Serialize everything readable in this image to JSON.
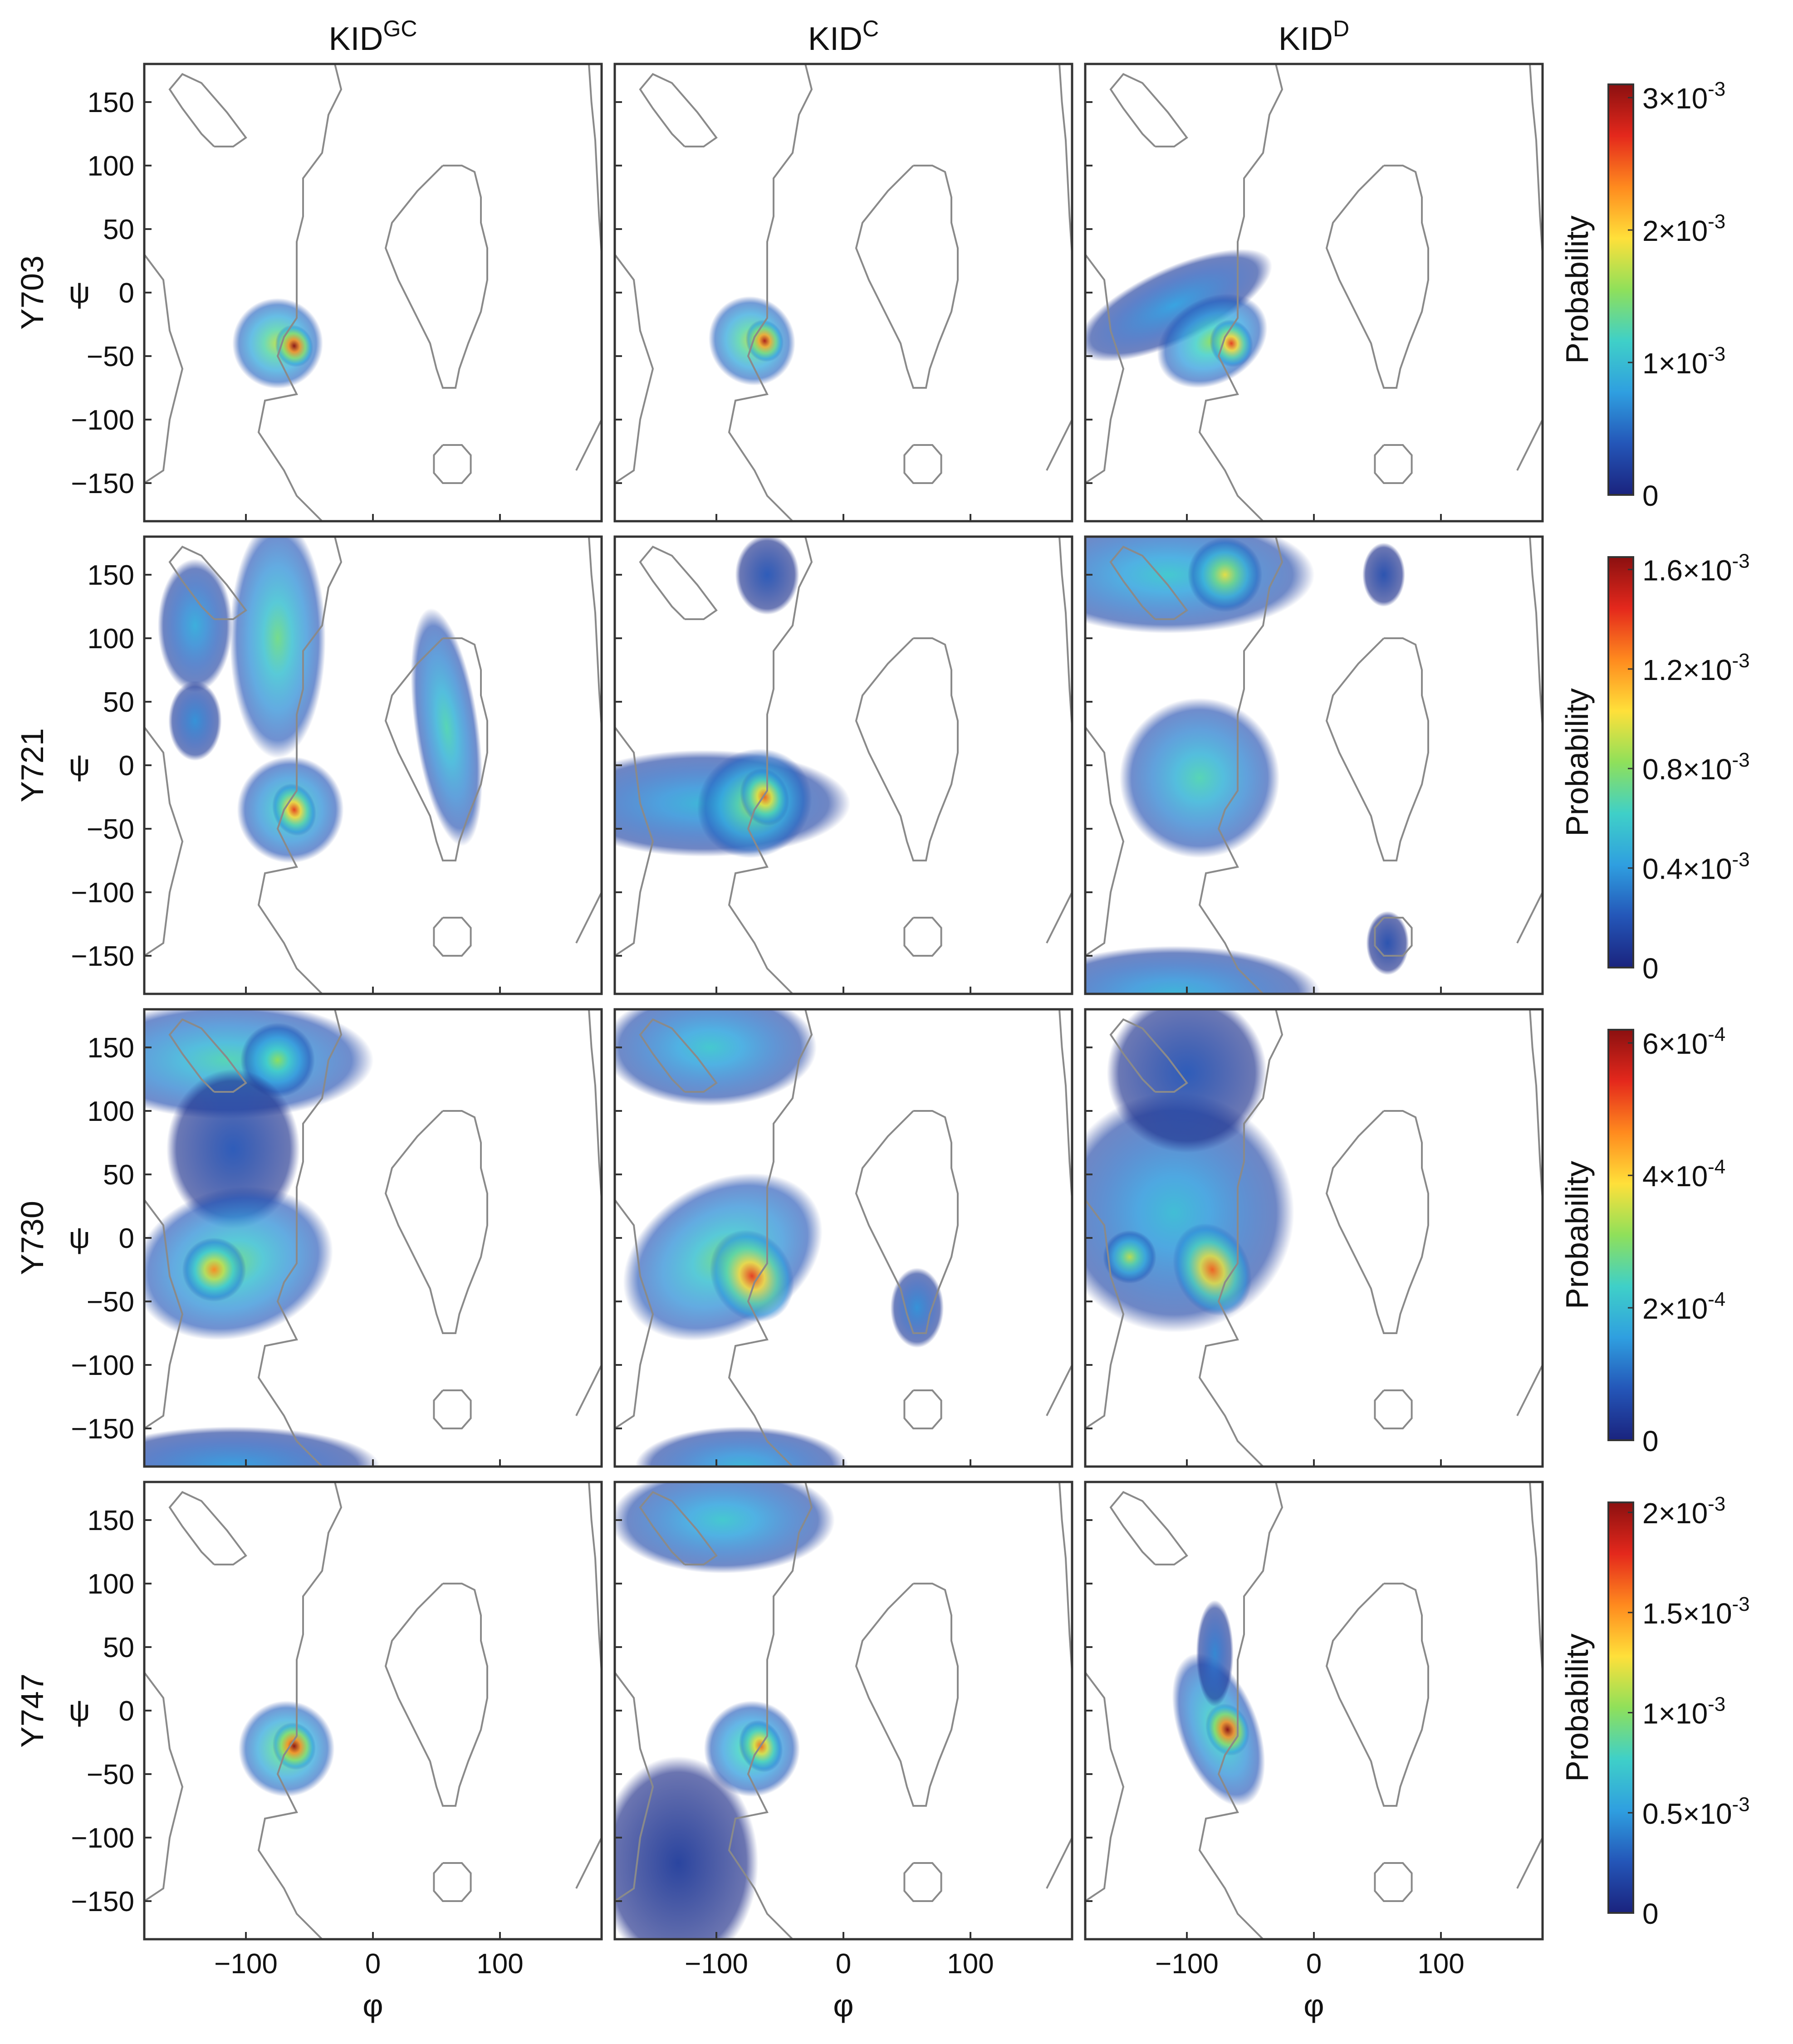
{
  "columns": [
    {
      "base": "KID",
      "sup": "GC"
    },
    {
      "base": "KID",
      "sup": "C"
    },
    {
      "base": "KID",
      "sup": "D"
    }
  ],
  "rows": [
    "Y703",
    "Y721",
    "Y730",
    "Y747"
  ],
  "axis": {
    "x_label": "φ",
    "y_label": "ψ",
    "x_ticks": [
      "−100",
      "0",
      "100"
    ],
    "y_ticks": [
      "150",
      "100",
      "50",
      "0",
      "−50",
      "−100",
      "−150"
    ],
    "colorbar_label": "Probability"
  },
  "colors": {
    "scale": [
      "#1a237e",
      "#2456b8",
      "#2f9fe0",
      "#3fd0c8",
      "#8fe05a",
      "#ffe03a",
      "#ff8a1e",
      "#e4281c",
      "#8b1010"
    ],
    "contour": "#8a8a8a",
    "frame": "#333333"
  },
  "chart_data": {
    "type": "heatmap",
    "grid": false,
    "xlim": [
      -180,
      180
    ],
    "ylim": [
      -180,
      180
    ],
    "x_tick_values": [
      -100,
      0,
      100
    ],
    "y_tick_values": [
      150,
      100,
      50,
      0,
      -50,
      -100,
      -150
    ],
    "colorbars": [
      {
        "row": "Y703",
        "ticks": [
          {
            "v": 0,
            "mant": "0",
            "exp": ""
          },
          {
            "v": 0.001,
            "mant": "1×10",
            "exp": "-3"
          },
          {
            "v": 0.002,
            "mant": "2×10",
            "exp": "-3"
          },
          {
            "v": 0.003,
            "mant": "3×10",
            "exp": "-3"
          }
        ],
        "max": 0.0031
      },
      {
        "row": "Y721",
        "ticks": [
          {
            "v": 0,
            "mant": "0",
            "exp": ""
          },
          {
            "v": 0.0004,
            "mant": "0.4×10",
            "exp": "-3"
          },
          {
            "v": 0.0008,
            "mant": "0.8×10",
            "exp": "-3"
          },
          {
            "v": 0.0012,
            "mant": "1.2×10",
            "exp": "-3"
          },
          {
            "v": 0.0016,
            "mant": "1.6×10",
            "exp": "-3"
          }
        ],
        "max": 0.00165
      },
      {
        "row": "Y730",
        "ticks": [
          {
            "v": 0,
            "mant": "0",
            "exp": ""
          },
          {
            "v": 0.0002,
            "mant": "2×10",
            "exp": "-4"
          },
          {
            "v": 0.0004,
            "mant": "4×10",
            "exp": "-4"
          },
          {
            "v": 0.0006,
            "mant": "6×10",
            "exp": "-4"
          }
        ],
        "max": 0.00062
      },
      {
        "row": "Y747",
        "ticks": [
          {
            "v": 0,
            "mant": "0",
            "exp": ""
          },
          {
            "v": 0.0005,
            "mant": "0.5×10",
            "exp": "-3"
          },
          {
            "v": 0.001,
            "mant": "1×10",
            "exp": "-3"
          },
          {
            "v": 0.0015,
            "mant": "1.5×10",
            "exp": "-3"
          },
          {
            "v": 0.002,
            "mant": "2×10",
            "exp": "-3"
          }
        ],
        "max": 0.00205
      }
    ],
    "region_outlines": [
      [
        [
          -180,
          -150
        ],
        [
          -165,
          -140
        ],
        [
          -160,
          -100
        ],
        [
          -150,
          -60
        ],
        [
          -160,
          -30
        ],
        [
          -165,
          10
        ],
        [
          -180,
          30
        ]
      ],
      [
        [
          -125,
          115
        ],
        [
          -135,
          125
        ],
        [
          -150,
          145
        ],
        [
          -160,
          160
        ],
        [
          -150,
          172
        ],
        [
          -135,
          165
        ],
        [
          -115,
          142
        ],
        [
          -100,
          122
        ],
        [
          -110,
          115
        ],
        [
          -125,
          115
        ]
      ],
      [
        [
          -30,
          180
        ],
        [
          -25,
          160
        ],
        [
          -35,
          140
        ],
        [
          -40,
          110
        ],
        [
          -55,
          90
        ],
        [
          -55,
          60
        ],
        [
          -60,
          40
        ],
        [
          -60,
          10
        ],
        [
          -60,
          -20
        ],
        [
          -70,
          -35
        ],
        [
          -75,
          -50
        ],
        [
          -60,
          -80
        ],
        [
          -85,
          -85
        ],
        [
          -90,
          -110
        ],
        [
          -70,
          -140
        ],
        [
          -60,
          -160
        ],
        [
          -40,
          -180
        ]
      ],
      [
        [
          170,
          180
        ],
        [
          172,
          150
        ],
        [
          175,
          120
        ],
        [
          178,
          60
        ],
        [
          180,
          30
        ]
      ],
      [
        [
          160,
          -140
        ],
        [
          170,
          -120
        ],
        [
          180,
          -100
        ]
      ],
      [
        [
          55,
          100
        ],
        [
          35,
          80
        ],
        [
          15,
          55
        ],
        [
          10,
          35
        ],
        [
          20,
          10
        ],
        [
          35,
          -20
        ],
        [
          45,
          -40
        ],
        [
          50,
          -60
        ],
        [
          55,
          -75
        ],
        [
          65,
          -75
        ],
        [
          68,
          -60
        ],
        [
          75,
          -40
        ],
        [
          85,
          -15
        ],
        [
          90,
          10
        ],
        [
          90,
          35
        ],
        [
          85,
          55
        ],
        [
          85,
          75
        ],
        [
          80,
          95
        ],
        [
          70,
          100
        ],
        [
          55,
          100
        ]
      ],
      [
        [
          55,
          -120
        ],
        [
          48,
          -128
        ],
        [
          48,
          -142
        ],
        [
          55,
          -150
        ],
        [
          70,
          -150
        ],
        [
          77,
          -142
        ],
        [
          77,
          -128
        ],
        [
          70,
          -120
        ],
        [
          55,
          -120
        ]
      ]
    ],
    "panels": [
      {
        "row": "Y703",
        "col": "KID^GC",
        "blobs": [
          {
            "x": -75,
            "y": -40,
            "sx": 17,
            "sy": 17,
            "rot": -30,
            "level": 0.55
          },
          {
            "x": -62,
            "y": -42,
            "sx": 7,
            "sy": 8,
            "rot": -20,
            "level": 1.0
          }
        ]
      },
      {
        "row": "Y703",
        "col": "KID^C",
        "blobs": [
          {
            "x": -72,
            "y": -38,
            "sx": 16,
            "sy": 17,
            "rot": -30,
            "level": 0.55
          },
          {
            "x": -62,
            "y": -38,
            "sx": 7,
            "sy": 8,
            "rot": -20,
            "level": 0.95
          }
        ]
      },
      {
        "row": "Y703",
        "col": "KID^D",
        "blobs": [
          {
            "x": -110,
            "y": -10,
            "sx": 40,
            "sy": 14,
            "rot": -25,
            "level": 0.25
          },
          {
            "x": -80,
            "y": -38,
            "sx": 22,
            "sy": 16,
            "rot": -30,
            "level": 0.5
          },
          {
            "x": -65,
            "y": -40,
            "sx": 8,
            "sy": 9,
            "rot": -20,
            "level": 0.85
          }
        ]
      },
      {
        "row": "Y721",
        "col": "KID^GC",
        "blobs": [
          {
            "x": -140,
            "y": 110,
            "sx": 14,
            "sy": 25,
            "rot": 0,
            "level": 0.28
          },
          {
            "x": -140,
            "y": 35,
            "sx": 10,
            "sy": 15,
            "rot": 0,
            "level": 0.22
          },
          {
            "x": -75,
            "y": 100,
            "sx": 18,
            "sy": 45,
            "rot": 0,
            "level": 0.45
          },
          {
            "x": -65,
            "y": -35,
            "sx": 20,
            "sy": 20,
            "rot": -30,
            "level": 0.45
          },
          {
            "x": -62,
            "y": -35,
            "sx": 8,
            "sy": 10,
            "rot": -20,
            "level": 0.85
          },
          {
            "x": 58,
            "y": 30,
            "sx": 12,
            "sy": 45,
            "rot": -8,
            "level": 0.4
          }
        ]
      },
      {
        "row": "Y721",
        "col": "KID^C",
        "blobs": [
          {
            "x": -110,
            "y": -30,
            "sx": 55,
            "sy": 20,
            "rot": 0,
            "level": 0.3
          },
          {
            "x": -70,
            "y": -30,
            "sx": 22,
            "sy": 20,
            "rot": -30,
            "level": 0.55
          },
          {
            "x": -62,
            "y": -25,
            "sx": 9,
            "sy": 11,
            "rot": -20,
            "level": 0.8
          },
          {
            "x": -60,
            "y": 150,
            "sx": 12,
            "sy": 15,
            "rot": 0,
            "level": 0.12
          }
        ]
      },
      {
        "row": "Y721",
        "col": "KID^D",
        "blobs": [
          {
            "x": -115,
            "y": 150,
            "sx": 55,
            "sy": 22,
            "rot": 0,
            "level": 0.35
          },
          {
            "x": -70,
            "y": 150,
            "sx": 14,
            "sy": 14,
            "rot": 0,
            "level": 0.6
          },
          {
            "x": -90,
            "y": -10,
            "sx": 30,
            "sy": 30,
            "rot": -30,
            "level": 0.4
          },
          {
            "x": -110,
            "y": -180,
            "sx": 55,
            "sy": 18,
            "rot": 0,
            "level": 0.3
          },
          {
            "x": 55,
            "y": 150,
            "sx": 8,
            "sy": 12,
            "rot": 0,
            "level": 0.1
          },
          {
            "x": 58,
            "y": -140,
            "sx": 8,
            "sy": 12,
            "rot": 0,
            "level": 0.1
          }
        ]
      },
      {
        "row": "Y730",
        "col": "KID^GC",
        "blobs": [
          {
            "x": -115,
            "y": 140,
            "sx": 55,
            "sy": 22,
            "rot": 0,
            "level": 0.4
          },
          {
            "x": -75,
            "y": 140,
            "sx": 14,
            "sy": 14,
            "rot": 0,
            "level": 0.5
          },
          {
            "x": -110,
            "y": 70,
            "sx": 25,
            "sy": 30,
            "rot": 0,
            "level": 0.12
          },
          {
            "x": -110,
            "y": -20,
            "sx": 38,
            "sy": 28,
            "rot": -15,
            "level": 0.45
          },
          {
            "x": -125,
            "y": -25,
            "sx": 12,
            "sy": 12,
            "rot": 0,
            "level": 0.75
          },
          {
            "x": -110,
            "y": -180,
            "sx": 55,
            "sy": 15,
            "rot": 0,
            "level": 0.25
          }
        ]
      },
      {
        "row": "Y730",
        "col": "KID^C",
        "blobs": [
          {
            "x": -105,
            "y": 150,
            "sx": 40,
            "sy": 22,
            "rot": 0,
            "level": 0.35
          },
          {
            "x": -95,
            "y": -15,
            "sx": 40,
            "sy": 28,
            "rot": -30,
            "level": 0.45
          },
          {
            "x": -72,
            "y": -30,
            "sx": 15,
            "sy": 18,
            "rot": -30,
            "level": 0.85
          },
          {
            "x": 58,
            "y": -55,
            "sx": 10,
            "sy": 15,
            "rot": 0,
            "level": 0.22
          },
          {
            "x": -80,
            "y": -180,
            "sx": 40,
            "sy": 15,
            "rot": 0,
            "level": 0.3
          }
        ]
      },
      {
        "row": "Y730",
        "col": "KID^D",
        "blobs": [
          {
            "x": -110,
            "y": 20,
            "sx": 45,
            "sy": 45,
            "rot": 0,
            "level": 0.32
          },
          {
            "x": -100,
            "y": 130,
            "sx": 30,
            "sy": 30,
            "rot": 0,
            "level": 0.12
          },
          {
            "x": -80,
            "y": -25,
            "sx": 14,
            "sy": 18,
            "rot": -25,
            "level": 0.8
          },
          {
            "x": -145,
            "y": -15,
            "sx": 10,
            "sy": 10,
            "rot": 0,
            "level": 0.55
          }
        ]
      },
      {
        "row": "Y747",
        "col": "KID^GC",
        "blobs": [
          {
            "x": -68,
            "y": -30,
            "sx": 18,
            "sy": 18,
            "rot": -30,
            "level": 0.55
          },
          {
            "x": -62,
            "y": -28,
            "sx": 8,
            "sy": 9,
            "rot": -20,
            "level": 1.0
          }
        ]
      },
      {
        "row": "Y747",
        "col": "KID^C",
        "blobs": [
          {
            "x": -95,
            "y": 150,
            "sx": 42,
            "sy": 20,
            "rot": 0,
            "level": 0.35
          },
          {
            "x": -72,
            "y": -30,
            "sx": 18,
            "sy": 18,
            "rot": -30,
            "level": 0.5
          },
          {
            "x": -65,
            "y": -28,
            "sx": 8,
            "sy": 10,
            "rot": -20,
            "level": 0.8
          },
          {
            "x": -130,
            "y": -120,
            "sx": 30,
            "sy": 40,
            "rot": 0,
            "level": 0.06
          }
        ]
      },
      {
        "row": "Y747",
        "col": "KID^D",
        "blobs": [
          {
            "x": -75,
            "y": -15,
            "sx": 15,
            "sy": 30,
            "rot": -20,
            "level": 0.45
          },
          {
            "x": -68,
            "y": -15,
            "sx": 8,
            "sy": 10,
            "rot": -20,
            "level": 1.0
          },
          {
            "x": -78,
            "y": 45,
            "sx": 7,
            "sy": 20,
            "rot": 0,
            "level": 0.2
          }
        ]
      }
    ]
  }
}
